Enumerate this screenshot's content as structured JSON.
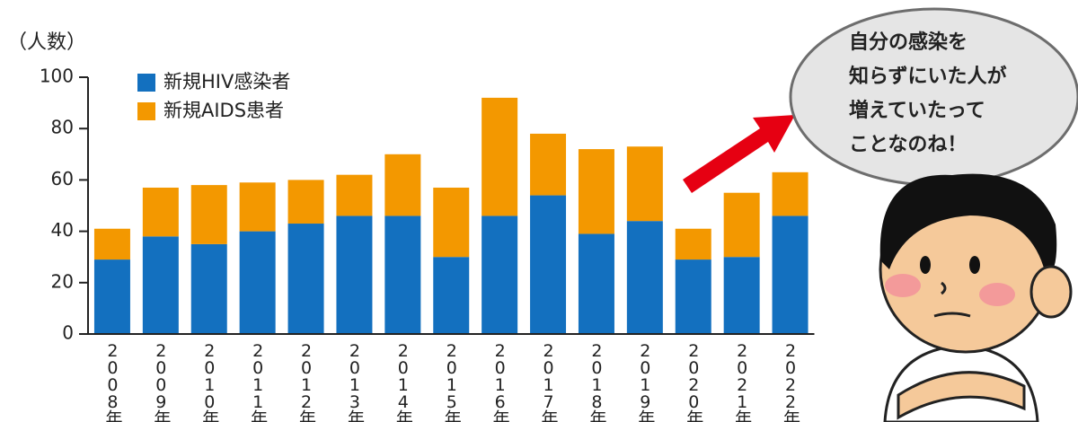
{
  "chart_data": {
    "type": "stacked-bar",
    "y_label": "（人数）",
    "categories": [
      "2008年",
      "2009年",
      "2010年",
      "2011年",
      "2012年",
      "2013年",
      "2014年",
      "2015年",
      "2016年",
      "2017年",
      "2018年",
      "2019年",
      "2020年",
      "2021年",
      "2022年"
    ],
    "series": [
      {
        "name": "新規HIV感染者",
        "color": "#1370bf",
        "values": [
          29,
          38,
          35,
          40,
          43,
          46,
          46,
          30,
          46,
          54,
          39,
          44,
          29,
          30,
          46
        ]
      },
      {
        "name": "新規AIDS患者",
        "color": "#f39800",
        "values": [
          12,
          19,
          23,
          19,
          17,
          16,
          24,
          27,
          46,
          24,
          33,
          29,
          12,
          25,
          17
        ]
      }
    ],
    "ylim": [
      0,
      100
    ],
    "yticks": [
      0,
      20,
      40,
      60,
      80,
      100
    ],
    "annotation": [
      "自分の感染を",
      "知らずにいた人が",
      "増えていたって",
      "ことなのね！"
    ]
  }
}
